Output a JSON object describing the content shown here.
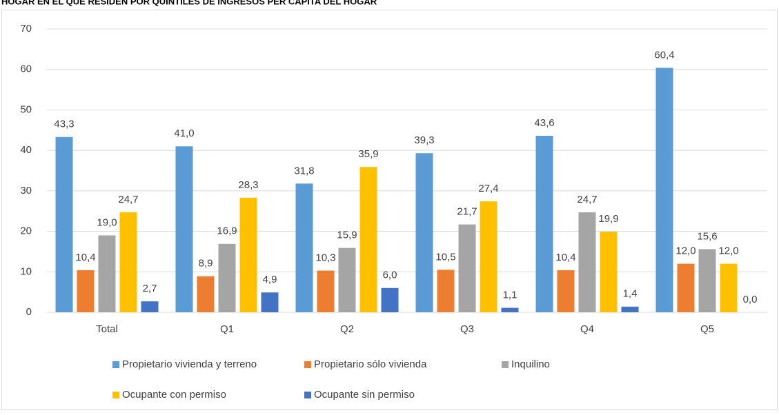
{
  "chart_data": {
    "type": "bar",
    "title": "HOGAR EN EL QUE RESIDEN POR QUINTILES DE INGRESOS PER CÁPITA DEL HOGAR",
    "categories": [
      "Total",
      "Q1",
      "Q2",
      "Q3",
      "Q4",
      "Q5"
    ],
    "series": [
      {
        "name": "Propietario vivienda y terreno",
        "color": "#5b9bd5",
        "values": [
          43.3,
          41.0,
          31.8,
          39.3,
          43.6,
          60.4
        ],
        "value_labels": [
          "43,3",
          "41,0",
          "31,8",
          "39,3",
          "43,6",
          "60,4"
        ]
      },
      {
        "name": "Propietario sólo vivienda",
        "color": "#ed7d31",
        "values": [
          10.4,
          8.9,
          10.3,
          10.5,
          10.4,
          12.0
        ],
        "value_labels": [
          "10,4",
          "8,9",
          "10,3",
          "10,5",
          "10,4",
          "12,0"
        ]
      },
      {
        "name": "Inquilino",
        "color": "#a5a5a5",
        "values": [
          19.0,
          16.9,
          15.9,
          21.7,
          24.7,
          15.6
        ],
        "value_labels": [
          "19,0",
          "16,9",
          "15,9",
          "21,7",
          "24,7",
          "15,6"
        ]
      },
      {
        "name": "Ocupante con permiso",
        "color": "#ffc000",
        "values": [
          24.7,
          28.3,
          35.9,
          27.4,
          19.9,
          12.0
        ],
        "value_labels": [
          "24,7",
          "28,3",
          "35,9",
          "27,4",
          "19,9",
          "12,0"
        ]
      },
      {
        "name": "Ocupante sin permiso",
        "color": "#4472c4",
        "values": [
          2.7,
          4.9,
          6.0,
          1.1,
          1.4,
          0.0
        ],
        "value_labels": [
          "2,7",
          "4,9",
          "6,0",
          "1,1",
          "1,4",
          "0,0"
        ]
      }
    ],
    "ylim": [
      0,
      70
    ],
    "yticks": [
      0,
      10,
      20,
      30,
      40,
      50,
      60,
      70
    ],
    "grid": true,
    "legend": "bottom"
  }
}
